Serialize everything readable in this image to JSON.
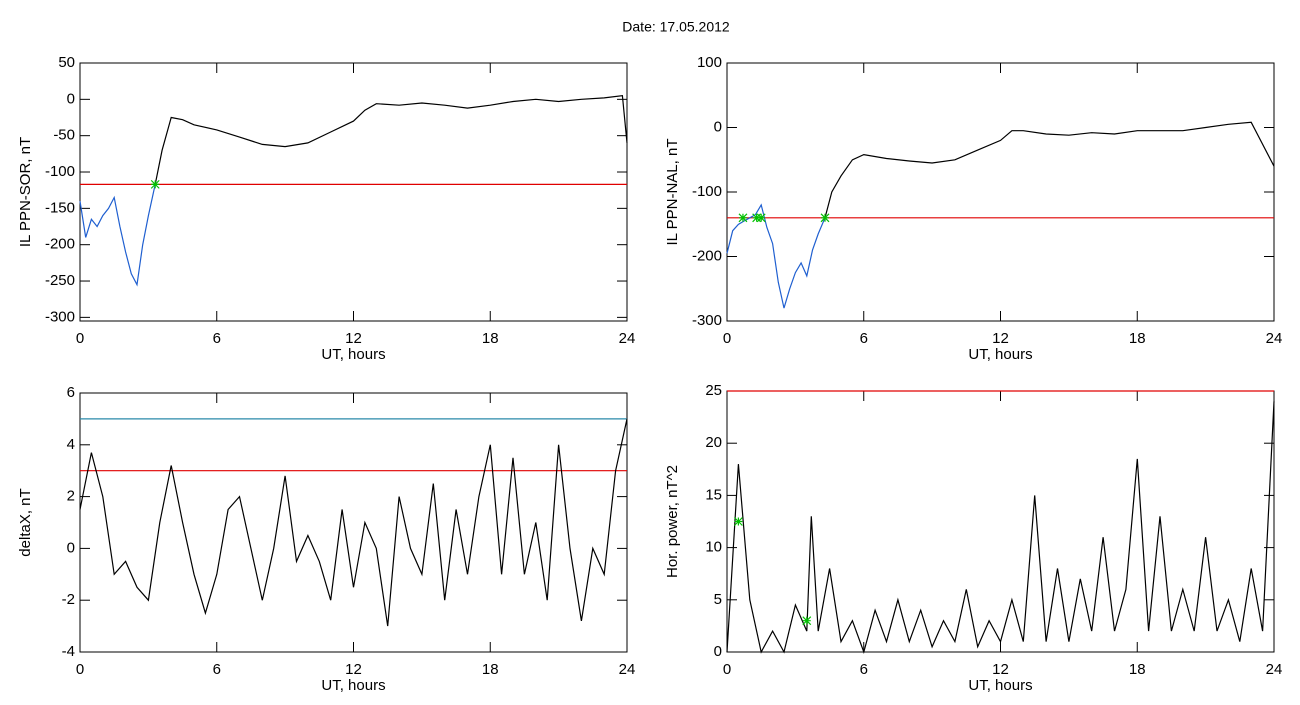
{
  "title": "Date:  17.05.2012",
  "chart_data": [
    {
      "type": "line",
      "ylabel": "IL PPN-SOR, nT",
      "xlabel": "UT, hours",
      "xlim": [
        0,
        24
      ],
      "xticks": [
        0,
        6,
        12,
        18,
        24
      ],
      "ylim": [
        -305,
        50
      ],
      "yticks": [
        50,
        0,
        -50,
        -100,
        -150,
        -200,
        -250,
        -300
      ],
      "series": [
        {
          "color": "#1f5fd0",
          "x": [
            0,
            0.25,
            0.5,
            0.75,
            1,
            1.25,
            1.5,
            1.75,
            2,
            2.25,
            2.5,
            2.75,
            3,
            3.3
          ],
          "values": [
            -140,
            -190,
            -165,
            -175,
            -160,
            -150,
            -135,
            -175,
            -210,
            -240,
            -255,
            -200,
            -160,
            -117
          ]
        },
        {
          "color": "#000000",
          "x": [
            3.3,
            3.6,
            4,
            4.5,
            5,
            6,
            7,
            8,
            9,
            10,
            11,
            12,
            12.5,
            13,
            14,
            15,
            16,
            17,
            18,
            19,
            20,
            21,
            22,
            23,
            23.8,
            24
          ],
          "values": [
            -117,
            -70,
            -25,
            -28,
            -35,
            -42,
            -52,
            -62,
            -65,
            -60,
            -45,
            -30,
            -15,
            -6,
            -8,
            -5,
            -8,
            -12,
            -8,
            -3,
            0,
            -3,
            0,
            2,
            5,
            -60
          ]
        }
      ],
      "hlines": [
        {
          "value": -117,
          "color": "#e00000"
        }
      ],
      "markers": {
        "color": "#00c000",
        "x": [
          3.3
        ],
        "values": [
          -117
        ]
      }
    },
    {
      "type": "line",
      "ylabel": "IL PPN-NAL, nT",
      "xlabel": "UT, hours",
      "xlim": [
        0,
        24
      ],
      "xticks": [
        0,
        6,
        12,
        18,
        24
      ],
      "ylim": [
        -300,
        100
      ],
      "yticks": [
        100,
        0,
        -100,
        -200,
        -300
      ],
      "series": [
        {
          "color": "#1f5fd0",
          "x": [
            0,
            0.25,
            0.5,
            0.75,
            1,
            1.25,
            1.5,
            1.75,
            2,
            2.25,
            2.5,
            2.75,
            3,
            3.25,
            3.5,
            3.75,
            4,
            4.3
          ],
          "values": [
            -195,
            -160,
            -150,
            -145,
            -140,
            -135,
            -120,
            -155,
            -180,
            -240,
            -280,
            -250,
            -225,
            -210,
            -230,
            -190,
            -165,
            -140
          ]
        },
        {
          "color": "#000000",
          "x": [
            4.3,
            4.6,
            5,
            5.5,
            6,
            7,
            8,
            9,
            10,
            11,
            12,
            12.5,
            13,
            14,
            15,
            16,
            17,
            18,
            19,
            20,
            21,
            22,
            23,
            24
          ],
          "values": [
            -140,
            -100,
            -75,
            -50,
            -42,
            -48,
            -52,
            -55,
            -50,
            -35,
            -20,
            -5,
            -5,
            -10,
            -12,
            -8,
            -10,
            -5,
            -5,
            -5,
            0,
            5,
            8,
            -60
          ]
        }
      ],
      "hlines": [
        {
          "value": -140,
          "color": "#e00000"
        }
      ],
      "markers": {
        "color": "#00c000",
        "x": [
          0.7,
          1.3,
          1.5,
          4.3
        ],
        "values": [
          -140,
          -140,
          -140,
          -140
        ]
      }
    },
    {
      "type": "line",
      "ylabel": "deltaX, nT",
      "xlabel": "UT, hours",
      "xlim": [
        0,
        24
      ],
      "xticks": [
        0,
        6,
        12,
        18,
        24
      ],
      "ylim": [
        -4,
        6
      ],
      "yticks": [
        6,
        4,
        2,
        0,
        -2,
        -4
      ],
      "series": [
        {
          "color": "#000000",
          "x": [
            0,
            0.5,
            1,
            1.5,
            2,
            2.5,
            3,
            3.5,
            4,
            4.5,
            5,
            5.5,
            6,
            6.5,
            7,
            7.5,
            8,
            8.5,
            9,
            9.5,
            10,
            10.5,
            11,
            11.5,
            12,
            12.5,
            13,
            13.5,
            14,
            14.5,
            15,
            15.5,
            16,
            16.5,
            17,
            17.5,
            18,
            18.5,
            19,
            19.5,
            20,
            20.5,
            21,
            21.5,
            22,
            22.5,
            23,
            23.5,
            24
          ],
          "values": [
            1.5,
            3.7,
            2,
            -1,
            -0.5,
            -1.5,
            -2,
            1,
            3.2,
            1,
            -1,
            -2.5,
            -1,
            1.5,
            2,
            0,
            -2,
            0,
            2.8,
            -0.5,
            0.5,
            -0.5,
            -2,
            1.5,
            -1.5,
            1,
            0,
            -3,
            2,
            0,
            -1,
            2.5,
            -2,
            1.5,
            -1,
            2,
            4,
            -1,
            3.5,
            -1,
            1,
            -2,
            4,
            0,
            -2.8,
            0,
            -1,
            3,
            5
          ]
        }
      ],
      "hlines": [
        {
          "value": 5,
          "color": "#2a8aaa"
        },
        {
          "value": 3,
          "color": "#e00000"
        }
      ]
    },
    {
      "type": "line",
      "ylabel": "Hor. power, nT^2",
      "xlabel": "UT, hours",
      "xlim": [
        0,
        24
      ],
      "xticks": [
        0,
        6,
        12,
        18,
        24
      ],
      "ylim": [
        0,
        25
      ],
      "yticks": [
        25,
        20,
        15,
        10,
        5,
        0
      ],
      "series": [
        {
          "color": "#000000",
          "x": [
            0,
            0.5,
            1,
            1.5,
            2,
            2.5,
            3,
            3.5,
            3.7,
            4,
            4.5,
            5,
            5.5,
            6,
            6.5,
            7,
            7.5,
            8,
            8.5,
            9,
            9.5,
            10,
            10.5,
            11,
            11.5,
            12,
            12.5,
            13,
            13.5,
            14,
            14.5,
            15,
            15.5,
            16,
            16.5,
            17,
            17.5,
            18,
            18.5,
            19,
            19.5,
            20,
            20.5,
            21,
            21.5,
            22,
            22.5,
            23,
            23.5,
            24
          ],
          "values": [
            0,
            18,
            5,
            0,
            2,
            0,
            4.5,
            2,
            13,
            2,
            8,
            1,
            3,
            0,
            4,
            1,
            5,
            1,
            4,
            0.5,
            3,
            1,
            6,
            0.5,
            3,
            1,
            5,
            1,
            15,
            1,
            8,
            1,
            7,
            2,
            11,
            2,
            6,
            18.5,
            2,
            13,
            2,
            6,
            2,
            11,
            2,
            5,
            1,
            8,
            2,
            24
          ]
        }
      ],
      "hlines": [
        {
          "value": 25,
          "color": "#e00000"
        }
      ],
      "markers": {
        "color": "#00c000",
        "x": [
          0.5,
          3.5
        ],
        "values": [
          12.5,
          3
        ]
      }
    }
  ]
}
